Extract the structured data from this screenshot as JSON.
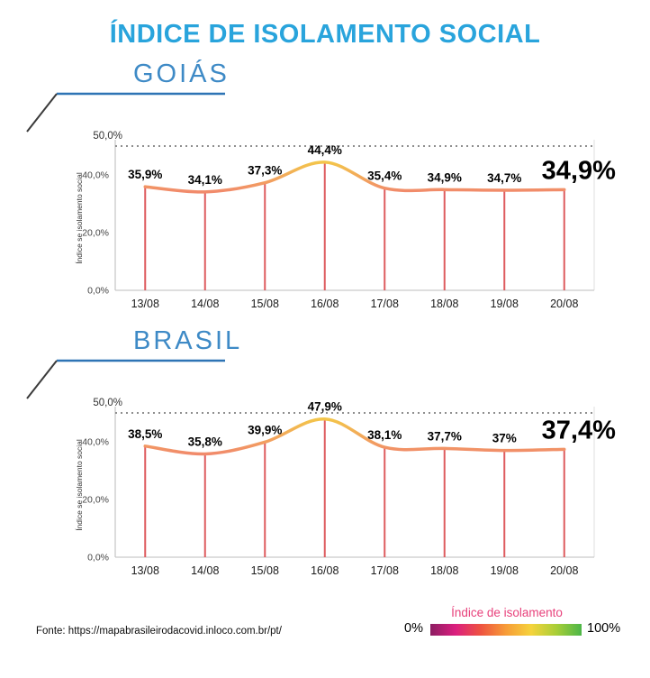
{
  "title": "ÍNDICE DE ISOLAMENTO SOCIAL",
  "chart_data": [
    {
      "type": "line",
      "title": "GOIÁS",
      "categories": [
        "13/08",
        "14/08",
        "15/08",
        "16/08",
        "17/08",
        "18/08",
        "19/08",
        "20/08"
      ],
      "values": [
        35.9,
        34.1,
        37.3,
        44.4,
        35.4,
        34.9,
        34.7,
        34.9
      ],
      "point_labels": [
        "35,9%",
        "34,1%",
        "37,3%",
        "44,4%",
        "35,4%",
        "34,9%",
        "34,7%",
        "34,9%"
      ],
      "highlight_last": true,
      "ylabel": "Índice se isolamento social",
      "yticks": [
        {
          "value": 0,
          "label": "0,0%"
        },
        {
          "value": 20,
          "label": "20,0%"
        },
        {
          "value": 40,
          "label": "40,0%"
        }
      ],
      "reference_line": {
        "value": 50,
        "label": "50,0%"
      },
      "ylim": [
        0,
        50
      ],
      "grid": false,
      "colors": {
        "line_top": "#F3C54A",
        "line_bottom": "#F18A6B",
        "drop_line": "#DE5B5F",
        "axis": "#C9C9C9",
        "reference": "#8F8F8F"
      }
    },
    {
      "type": "line",
      "title": "BRASIL",
      "categories": [
        "13/08",
        "14/08",
        "15/08",
        "16/08",
        "17/08",
        "18/08",
        "19/08",
        "20/08"
      ],
      "values": [
        38.5,
        35.8,
        39.9,
        47.9,
        38.1,
        37.7,
        37,
        37.4
      ],
      "point_labels": [
        "38,5%",
        "35,8%",
        "39,9%",
        "47,9%",
        "38,1%",
        "37,7%",
        "37%",
        "37,4%"
      ],
      "highlight_last": true,
      "ylabel": "Índice se isolamento social",
      "yticks": [
        {
          "value": 0,
          "label": "0,0%"
        },
        {
          "value": 20,
          "label": "20,0%"
        },
        {
          "value": 40,
          "label": "40,0%"
        }
      ],
      "reference_line": {
        "value": 50,
        "label": "50,0%"
      },
      "ylim": [
        0,
        50
      ],
      "grid": false,
      "colors": {
        "line_top": "#F3C54A",
        "line_bottom": "#F18A6B",
        "drop_line": "#DE5B5F",
        "axis": "#C9C9C9",
        "reference": "#8F8F8F"
      }
    }
  ],
  "footer": {
    "source": "Fonte: https://mapabrasileirodacovid.inloco.com.br/pt/",
    "legend": {
      "title": "Índice de isolamento",
      "min": "0%",
      "max": "100%",
      "gradient": [
        "#8C1D62",
        "#DB1F7F",
        "#EE5340",
        "#F79C38",
        "#F5D33C",
        "#A8CE38",
        "#4CB648"
      ]
    }
  },
  "colors": {
    "title": "#29A4DC",
    "section_heading": "#3E8AC6",
    "underline": "#2E74B5",
    "diagonal": "#3A3A3A",
    "legend_title": "#E8427C"
  }
}
